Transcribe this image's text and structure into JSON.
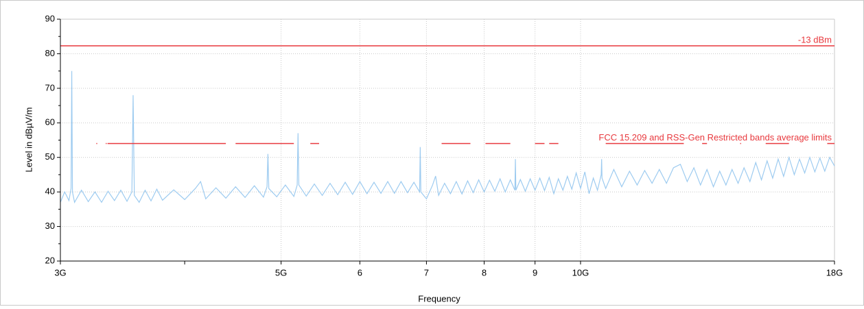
{
  "chart_data": {
    "type": "line",
    "x_label": "Frequency",
    "y_label": "Level in dBµV/m",
    "xscale": "log",
    "xlim": [
      3,
      18
    ],
    "xticks": [
      {
        "value": 3,
        "label": "3G"
      },
      {
        "value": 5,
        "label": "5G"
      },
      6,
      7,
      8,
      9,
      {
        "value": 10,
        "label": "10G"
      },
      {
        "value": 18,
        "label": "18G"
      }
    ],
    "xminor_ticks": [
      4
    ],
    "ylim": [
      20,
      90
    ],
    "yticks": [
      20,
      30,
      40,
      50,
      60,
      70,
      80,
      90
    ],
    "yminor_ticks": [
      25,
      35,
      45,
      55,
      65,
      75,
      85
    ],
    "grid": true,
    "series": [
      {
        "color": "#9dcbf0",
        "x": [
          3.0,
          3.03,
          3.06,
          3.075,
          3.08,
          3.085,
          3.1,
          3.15,
          3.2,
          3.25,
          3.3,
          3.35,
          3.4,
          3.45,
          3.5,
          3.54,
          3.55,
          3.56,
          3.6,
          3.65,
          3.7,
          3.75,
          3.8,
          3.9,
          4.0,
          4.1,
          4.15,
          4.2,
          4.3,
          4.4,
          4.5,
          4.6,
          4.7,
          4.8,
          4.84,
          4.85,
          4.86,
          4.95,
          5.05,
          5.15,
          5.19,
          5.2,
          5.21,
          5.3,
          5.4,
          5.5,
          5.6,
          5.7,
          5.8,
          5.9,
          6.0,
          6.1,
          6.2,
          6.3,
          6.4,
          6.5,
          6.6,
          6.7,
          6.8,
          6.89,
          6.9,
          6.91,
          7.0,
          7.1,
          7.15,
          7.2,
          7.3,
          7.4,
          7.5,
          7.6,
          7.7,
          7.8,
          7.9,
          8.0,
          8.1,
          8.2,
          8.3,
          8.4,
          8.5,
          8.59,
          8.6,
          8.61,
          8.7,
          8.8,
          8.9,
          9.0,
          9.1,
          9.2,
          9.3,
          9.4,
          9.5,
          9.6,
          9.7,
          9.8,
          9.9,
          10.0,
          10.1,
          10.2,
          10.3,
          10.4,
          10.49,
          10.5,
          10.51,
          10.6,
          10.8,
          11.0,
          11.2,
          11.4,
          11.6,
          11.8,
          12.0,
          12.2,
          12.4,
          12.6,
          12.8,
          13.0,
          13.2,
          13.4,
          13.6,
          13.8,
          14.0,
          14.2,
          14.4,
          14.6,
          14.8,
          15.0,
          15.2,
          15.4,
          15.6,
          15.8,
          16.0,
          16.2,
          16.4,
          16.6,
          16.8,
          17.0,
          17.2,
          17.4,
          17.6,
          17.8,
          18.0
        ],
        "values": [
          37,
          40,
          37.5,
          41,
          75,
          40,
          37,
          40.5,
          37.2,
          40,
          37,
          40.2,
          37.5,
          40.5,
          37.3,
          40,
          68,
          39,
          37,
          40.5,
          37.4,
          40.8,
          37.6,
          40.6,
          37.8,
          41,
          43,
          38,
          41.2,
          38.2,
          41.5,
          38.4,
          41.8,
          38.5,
          41.5,
          51,
          41,
          38.6,
          42,
          38.7,
          42,
          57,
          42,
          38.8,
          42.3,
          39,
          42.5,
          39.2,
          42.8,
          39.3,
          43,
          39.5,
          42.8,
          39.6,
          43,
          39.6,
          43,
          39.8,
          42.8,
          40,
          53,
          40,
          38,
          42,
          44.6,
          39,
          42.5,
          39.5,
          43,
          39.4,
          43.2,
          39.8,
          43.5,
          40,
          43.4,
          40.2,
          43.8,
          40,
          43.5,
          40.5,
          49.5,
          40.5,
          43.6,
          40.2,
          43.8,
          40.5,
          44,
          40.4,
          44.2,
          39.5,
          43.8,
          40.5,
          44.5,
          40.8,
          45.5,
          41,
          45.8,
          39.5,
          44,
          40.5,
          45,
          49.5,
          44,
          41,
          46.5,
          41.5,
          46,
          42,
          46.2,
          42.5,
          46.5,
          42.5,
          47,
          48,
          43,
          47,
          42,
          46.5,
          41.5,
          46,
          42,
          46.5,
          42.5,
          47,
          43,
          48.5,
          43.5,
          49,
          44,
          49.5,
          44.5,
          50,
          45,
          49.5,
          45.5,
          50,
          45.8,
          49.8,
          46,
          50,
          47.5
        ]
      },
      {
        "name": "-13 dBm",
        "color": "#e8383d",
        "x": [
          3,
          18
        ],
        "values": [
          82.3,
          82.3
        ]
      },
      {
        "name": "FCC 15.209 and RSS-Gen Restricted bands average limits",
        "color": "#e8383d",
        "x": [
          3.26,
          3.267,
          3.267,
          3.332,
          3.339,
          3.339,
          3.3458,
          4.4,
          4.4,
          4.5,
          5.15,
          5.15,
          5.35,
          5.46,
          5.46,
          7.25,
          7.75,
          7.75,
          8.025,
          8.5,
          8.5,
          9.0,
          9.2,
          9.2,
          9.3,
          9.5,
          9.5,
          10.6,
          12.7,
          12.7,
          13.25,
          13.4,
          13.4,
          14.47,
          14.5,
          14.5,
          15.35,
          16.2,
          16.2,
          17.7,
          18
        ],
        "values": [
          54,
          54,
          null,
          54,
          54,
          null,
          54,
          54,
          null,
          54,
          54,
          null,
          54,
          54,
          null,
          54,
          54,
          null,
          54,
          54,
          null,
          54,
          54,
          null,
          54,
          54,
          null,
          54,
          54,
          null,
          54,
          54,
          null,
          54,
          54,
          null,
          54,
          54,
          null,
          54,
          54
        ]
      }
    ]
  }
}
